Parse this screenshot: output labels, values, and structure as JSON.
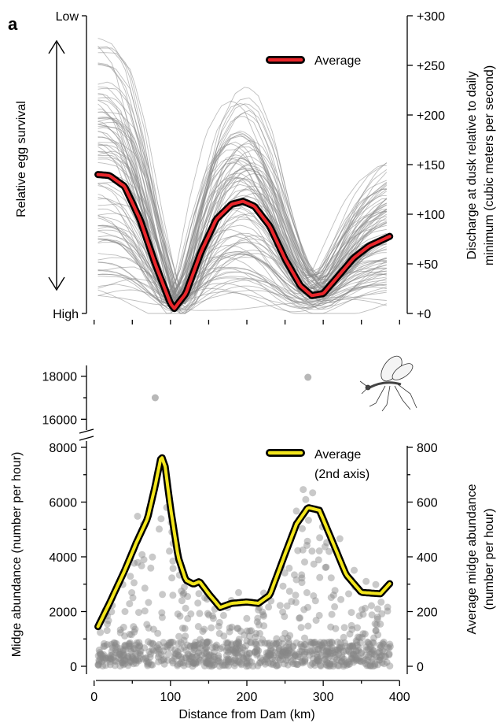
{
  "panel_label": "a",
  "chart_data": [
    {
      "type": "line",
      "panel": "top",
      "left_axis": {
        "title": "Relative egg survival",
        "top_label": "Low",
        "bottom_label": "High"
      },
      "right_axis": {
        "title_line1": "Discharge at dusk relative to daily",
        "title_line2": "minimum (cubic meters per second)",
        "ylim": [
          0,
          300
        ],
        "ticks": [
          0,
          50,
          100,
          150,
          200,
          250,
          300
        ],
        "tick_labels": [
          "+0",
          "+50",
          "+100",
          "+150",
          "+200",
          "+250",
          "+300"
        ]
      },
      "xlim": [
        -10,
        410
      ],
      "legend": {
        "label": "Average",
        "position": "top-right"
      },
      "series": [
        {
          "name": "Average",
          "color": "#e8262b",
          "x": [
            5,
            20,
            40,
            60,
            80,
            100,
            105,
            120,
            140,
            160,
            180,
            195,
            210,
            230,
            250,
            270,
            285,
            300,
            320,
            340,
            360,
            388
          ],
          "y": [
            140,
            139,
            128,
            95,
            50,
            10,
            5,
            20,
            62,
            95,
            110,
            113,
            108,
            88,
            55,
            28,
            18,
            20,
            38,
            56,
            68,
            78
          ]
        }
      ],
      "simulation_color": "#888888"
    },
    {
      "type": "scatter",
      "panel": "bottom",
      "xlabel": "Distance from Dam (km)",
      "ylabel": "Midge abundance (number per hour)",
      "xlim": [
        -10,
        410
      ],
      "x_ticks": [
        0,
        100,
        200,
        300,
        400
      ],
      "x_tick_labels": [
        "0",
        "100",
        "200",
        "300",
        "400"
      ],
      "lower_ylim": [
        0,
        8000
      ],
      "upper_ylim": [
        15500,
        18500
      ],
      "y_ticks_lower": [
        0,
        2000,
        4000,
        6000,
        8000
      ],
      "y_tick_labels_lower": [
        "0",
        "2000",
        "4000",
        "6000",
        "8000"
      ],
      "y_ticks_upper": [
        16000,
        18000
      ],
      "y_tick_labels_upper": [
        "16000",
        "18000"
      ],
      "right_axis": {
        "title_line1": "Average midge abundance",
        "title_line2": "(number per hour)",
        "ylim": [
          0,
          800
        ],
        "ticks": [
          0,
          200,
          400,
          600,
          800
        ],
        "tick_labels": [
          "0",
          "200",
          "400",
          "600",
          "800"
        ]
      },
      "legend": {
        "label_line1": "Average",
        "label_line2": "(2nd axis)",
        "position": "top-right"
      },
      "outliers": [
        {
          "x": 80,
          "y": 17000
        },
        {
          "x": 280,
          "y": 17950
        }
      ],
      "average_series": {
        "name": "Average",
        "color": "#f2e51b",
        "x": [
          5,
          20,
          40,
          55,
          70,
          80,
          88,
          93,
          100,
          110,
          120,
          130,
          138,
          150,
          165,
          180,
          200,
          215,
          230,
          250,
          265,
          280,
          295,
          310,
          330,
          350,
          375,
          388
        ],
        "y": [
          145,
          230,
          350,
          450,
          540,
          660,
          770,
          730,
          580,
          400,
          315,
          300,
          310,
          265,
          215,
          230,
          235,
          230,
          260,
          410,
          520,
          580,
          570,
          470,
          335,
          270,
          265,
          305
        ]
      },
      "points_color": "#888888"
    }
  ]
}
